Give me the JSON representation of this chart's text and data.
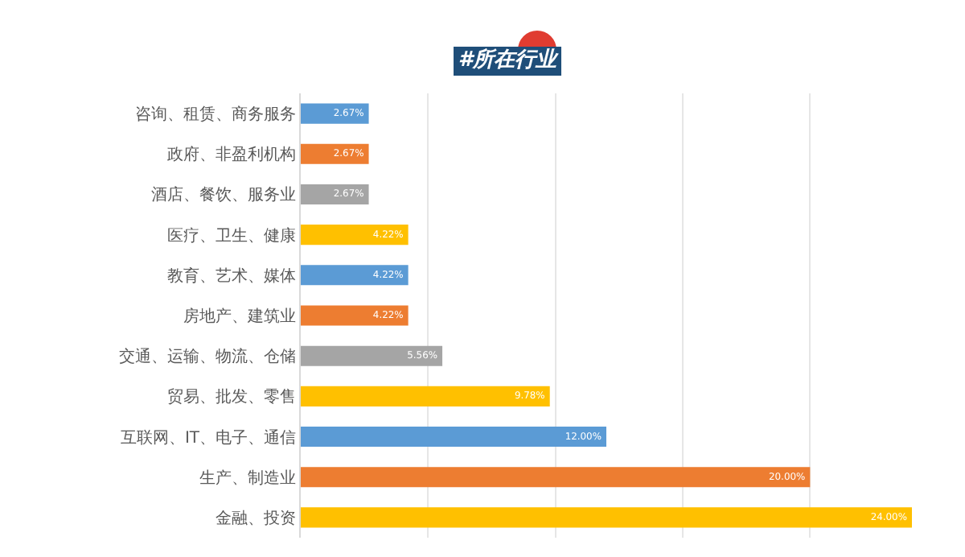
{
  "chart_data": {
    "type": "bar",
    "title": "#所在行业",
    "orientation": "horizontal",
    "categories": [
      "咨询、租赁、商务服务",
      "政府、非盈利机构",
      "酒店、餐饮、服务业",
      "医疗、卫生、健康",
      "教育、艺术、媒体",
      "房地产、建筑业",
      "交通、运输、物流、仓储",
      "贸易、批发、零售",
      "互联网、IT、电子、通信",
      "生产、制造业",
      "金融、投资"
    ],
    "values": [
      2.67,
      2.67,
      2.67,
      4.22,
      4.22,
      4.22,
      5.56,
      9.78,
      12.0,
      20.0,
      24.0
    ],
    "value_labels": [
      "2.67%",
      "2.67%",
      "2.67%",
      "4.22%",
      "4.22%",
      "4.22%",
      "5.56%",
      "9.78%",
      "12.00%",
      "20.00%",
      "24.00%"
    ],
    "colors": [
      "#5b9bd5",
      "#ed7d31",
      "#a5a5a5",
      "#ffc000",
      "#5b9bd5",
      "#ed7d31",
      "#a5a5a5",
      "#ffc000",
      "#5b9bd5",
      "#ed7d31",
      "#ffc000"
    ],
    "xticks": [
      {
        "value": 0,
        "label": null
      },
      {
        "value": 5,
        "label": null
      },
      {
        "value": 10,
        "label": null
      },
      {
        "value": 15,
        "label": null
      },
      {
        "value": 20,
        "label": null
      }
    ],
    "grid": "x",
    "tick_labels": "y"
  }
}
